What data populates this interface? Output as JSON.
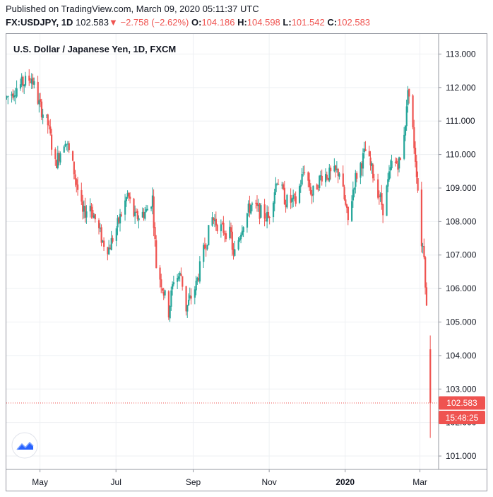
{
  "header": {
    "published": "Published on TradingView.com, March 09, 2020 05:11:37 UTC",
    "symbol": "FX:USDJPY, 1D",
    "last": "102.583",
    "down_arrow": "▼",
    "change": "−2.758 (−2.62%)",
    "o_label": "O:",
    "o_value": "104.186",
    "h_label": "H:",
    "h_value": "104.598",
    "l_label": "L:",
    "l_value": "101.542",
    "c_label": "C:",
    "c_value": "102.583"
  },
  "colors": {
    "up": "#26a69a",
    "down": "#ef5350",
    "grid": "#eef0f3",
    "axis": "#9598a1",
    "text": "#131722"
  },
  "chart_data": {
    "type": "candlestick",
    "title": "U.S. Dollar / Japanese Yen, 1D, FXCM",
    "ylim": [
      100.6,
      113.6
    ],
    "y_ticks": [
      "113.000",
      "112.000",
      "111.000",
      "110.000",
      "109.000",
      "108.000",
      "107.000",
      "106.000",
      "105.000",
      "104.000",
      "103.000",
      "102.000",
      "101.000"
    ],
    "x_ticks": [
      {
        "label": "May",
        "date": "2019-05-01",
        "bold": false
      },
      {
        "label": "Jul",
        "date": "2019-07-01",
        "bold": false
      },
      {
        "label": "Sep",
        "date": "2019-09-01",
        "bold": false
      },
      {
        "label": "Nov",
        "date": "2019-11-01",
        "bold": false
      },
      {
        "label": "2020",
        "date": "2020-01-01",
        "bold": true
      },
      {
        "label": "Mar",
        "date": "2020-03-01",
        "bold": false
      }
    ],
    "x_range": [
      "2019-04-04",
      "2020-03-16"
    ],
    "price_label": "102.583",
    "countdown_label": "15:48:25",
    "series_close_anchors": [
      [
        "2019-04-04",
        111.7
      ],
      [
        "2019-04-12",
        112.0
      ],
      [
        "2019-04-24",
        112.3
      ],
      [
        "2019-04-30",
        111.5
      ],
      [
        "2019-05-07",
        110.9
      ],
      [
        "2019-05-13",
        109.7
      ],
      [
        "2019-05-21",
        110.5
      ],
      [
        "2019-05-28",
        109.5
      ],
      [
        "2019-06-04",
        108.2
      ],
      [
        "2019-06-10",
        108.5
      ],
      [
        "2019-06-20",
        107.4
      ],
      [
        "2019-06-25",
        107.2
      ],
      [
        "2019-07-02",
        107.9
      ],
      [
        "2019-07-10",
        108.8
      ],
      [
        "2019-07-16",
        108.1
      ],
      [
        "2019-07-25",
        108.3
      ],
      [
        "2019-07-30",
        108.7
      ],
      [
        "2019-08-02",
        106.7
      ],
      [
        "2019-08-06",
        106.2
      ],
      [
        "2019-08-12",
        105.3
      ],
      [
        "2019-08-16",
        106.3
      ],
      [
        "2019-08-22",
        106.4
      ],
      [
        "2019-08-26",
        105.4
      ],
      [
        "2019-09-03",
        106.1
      ],
      [
        "2019-09-09",
        107.1
      ],
      [
        "2019-09-16",
        108.1
      ],
      [
        "2019-09-23",
        107.8
      ],
      [
        "2019-10-01",
        107.6
      ],
      [
        "2019-10-03",
        106.9
      ],
      [
        "2019-10-10",
        107.9
      ],
      [
        "2019-10-17",
        108.5
      ],
      [
        "2019-10-31",
        108.1
      ],
      [
        "2019-11-07",
        109.3
      ],
      [
        "2019-11-14",
        108.6
      ],
      [
        "2019-11-22",
        108.6
      ],
      [
        "2019-11-29",
        109.6
      ],
      [
        "2019-12-05",
        108.8
      ],
      [
        "2019-12-13",
        109.4
      ],
      [
        "2019-12-20",
        109.4
      ],
      [
        "2019-12-27",
        109.5
      ],
      [
        "2020-01-03",
        108.0
      ],
      [
        "2020-01-08",
        109.2
      ],
      [
        "2020-01-17",
        110.1
      ],
      [
        "2020-01-24",
        109.3
      ],
      [
        "2020-01-31",
        108.4
      ],
      [
        "2020-02-07",
        109.7
      ],
      [
        "2020-02-14",
        109.8
      ],
      [
        "2020-02-19",
        111.3
      ],
      [
        "2020-02-20",
        112.1
      ],
      [
        "2020-02-24",
        110.7
      ],
      [
        "2020-02-27",
        109.5
      ],
      [
        "2020-03-02",
        107.4
      ],
      [
        "2020-03-04",
        107.1
      ],
      [
        "2020-03-06",
        105.4
      ],
      [
        "2020-03-09",
        102.6
      ]
    ]
  }
}
